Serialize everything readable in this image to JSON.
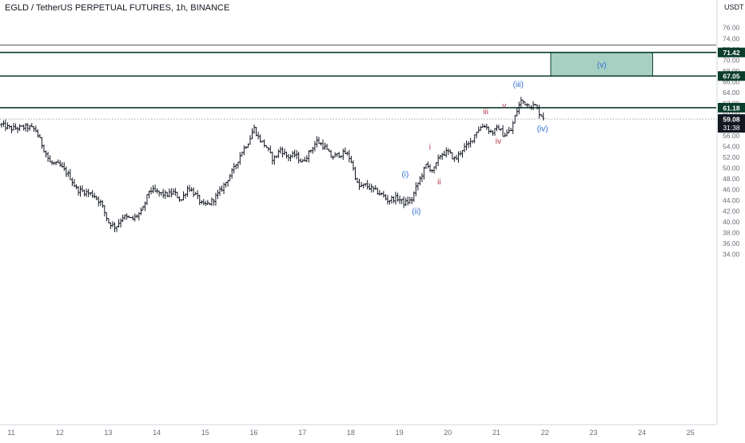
{
  "header": {
    "title": "EGLD / TetherUS PERPETUAL FUTURES, 1h, BINANCE",
    "currency": "USDT"
  },
  "chart_data": {
    "type": "ohlc",
    "title": "EGLD / TetherUS PERPETUAL FUTURES, 1h, BINANCE",
    "y_unit": "USDT",
    "ylim": [
      33.0,
      77.2
    ],
    "y_ticks": [
      34,
      36,
      38,
      40,
      42,
      44,
      46,
      48,
      50,
      52,
      54,
      56,
      58,
      60,
      62,
      64,
      66,
      68,
      70,
      72,
      74,
      76
    ],
    "x_ticks": [
      {
        "label": "11",
        "day": 11
      },
      {
        "label": "12",
        "day": 12
      },
      {
        "label": "13",
        "day": 13
      },
      {
        "label": "14",
        "day": 14
      },
      {
        "label": "15",
        "day": 15
      },
      {
        "label": "16",
        "day": 16
      },
      {
        "label": "17",
        "day": 17
      },
      {
        "label": "18",
        "day": 18
      },
      {
        "label": "19",
        "day": 19
      },
      {
        "label": "20",
        "day": 20
      },
      {
        "label": "21",
        "day": 21
      },
      {
        "label": "22",
        "day": 22
      },
      {
        "label": "23",
        "day": 23
      },
      {
        "label": "24",
        "day": 24
      },
      {
        "label": "25",
        "day": 25
      }
    ],
    "xlim": [
      10.8,
      25.9
    ],
    "price_path": [
      [
        10.8,
        58.0
      ],
      [
        11.0,
        57.3
      ],
      [
        11.35,
        57.6
      ],
      [
        11.5,
        57.1
      ],
      [
        11.65,
        54.0
      ],
      [
        11.8,
        51.0
      ],
      [
        12.0,
        50.5
      ],
      [
        12.2,
        48.5
      ],
      [
        12.35,
        46.0
      ],
      [
        12.55,
        45.5
      ],
      [
        12.7,
        45.0
      ],
      [
        12.85,
        43.5
      ],
      [
        13.0,
        40.0
      ],
      [
        13.15,
        39.0
      ],
      [
        13.3,
        41.0
      ],
      [
        13.5,
        40.5
      ],
      [
        13.7,
        42.0
      ],
      [
        13.85,
        46.0
      ],
      [
        14.0,
        45.5
      ],
      [
        14.2,
        45.0
      ],
      [
        14.35,
        45.5
      ],
      [
        14.5,
        44.0
      ],
      [
        14.65,
        46.5
      ],
      [
        14.8,
        45.0
      ],
      [
        14.95,
        43.0
      ],
      [
        15.1,
        43.5
      ],
      [
        15.25,
        45.0
      ],
      [
        15.4,
        47.0
      ],
      [
        15.6,
        50.0
      ],
      [
        15.75,
        53.0
      ],
      [
        15.9,
        55.0
      ],
      [
        16.0,
        57.5
      ],
      [
        16.1,
        55.5
      ],
      [
        16.25,
        54.0
      ],
      [
        16.4,
        51.5
      ],
      [
        16.55,
        53.5
      ],
      [
        16.7,
        52.0
      ],
      [
        16.85,
        52.5
      ],
      [
        17.0,
        51.0
      ],
      [
        17.15,
        53.0
      ],
      [
        17.3,
        55.0
      ],
      [
        17.45,
        54.0
      ],
      [
        17.6,
        52.0
      ],
      [
        17.75,
        52.5
      ],
      [
        17.9,
        52.8
      ],
      [
        18.0,
        51.5
      ],
      [
        18.15,
        46.5
      ],
      [
        18.3,
        46.8
      ],
      [
        18.5,
        45.8
      ],
      [
        18.65,
        45.0
      ],
      [
        18.75,
        44.0
      ],
      [
        18.95,
        44.5
      ],
      [
        19.1,
        43.5
      ],
      [
        19.25,
        44.0
      ],
      [
        19.35,
        46.5
      ],
      [
        19.45,
        48.5
      ],
      [
        19.55,
        50.5
      ],
      [
        19.7,
        49.5
      ],
      [
        19.85,
        52.5
      ],
      [
        20.0,
        53.0
      ],
      [
        20.15,
        51.5
      ],
      [
        20.3,
        53.5
      ],
      [
        20.45,
        54.5
      ],
      [
        20.6,
        57.0
      ],
      [
        20.75,
        58.0
      ],
      [
        20.9,
        56.5
      ],
      [
        21.05,
        57.5
      ],
      [
        21.15,
        56.0
      ],
      [
        21.3,
        57.0
      ],
      [
        21.4,
        60.0
      ],
      [
        21.5,
        62.5
      ],
      [
        21.6,
        62.0
      ],
      [
        21.7,
        61.5
      ],
      [
        21.8,
        61.5
      ],
      [
        21.9,
        60.0
      ],
      [
        22.0,
        59.08
      ]
    ],
    "price_lines": [
      {
        "value": 71.42,
        "label": "71.42",
        "color": "#0b3d2c"
      },
      {
        "value": 67.05,
        "label": "67.05",
        "color": "#0b3d2c"
      },
      {
        "value": 61.18,
        "label": "61.18",
        "color": "#0b3d2c"
      }
    ],
    "thin_line": {
      "value": 72.8,
      "color": "#555555"
    },
    "current_price": {
      "value": 59.08,
      "label": "59.08",
      "countdown": "31:38"
    },
    "target_zone": {
      "x_start": 22.12,
      "x_end": 24.22,
      "y_low": 67.05,
      "y_high": 71.42,
      "label": "(v)",
      "fill": "#9dcbbb",
      "border": "#0b3d2c"
    },
    "annotations": [
      {
        "text": "(i)",
        "day": 19.12,
        "price": 48.4,
        "color": "#2f6fd6"
      },
      {
        "text": "(ii)",
        "day": 19.35,
        "price": 41.5,
        "color": "#2f6fd6"
      },
      {
        "text": "(iii)",
        "day": 21.45,
        "price": 65.0,
        "color": "#2f6fd6"
      },
      {
        "text": "(iv)",
        "day": 21.95,
        "price": 56.8,
        "color": "#2f6fd6"
      },
      {
        "text": "i",
        "day": 19.63,
        "price": 53.4,
        "color": "#b2374a"
      },
      {
        "text": "ii",
        "day": 19.82,
        "price": 47.0,
        "color": "#b2374a"
      },
      {
        "text": "iii",
        "day": 20.78,
        "price": 60.0,
        "color": "#b2374a"
      },
      {
        "text": "iv",
        "day": 21.04,
        "price": 54.5,
        "color": "#b2374a"
      },
      {
        "text": "v",
        "day": 21.16,
        "price": 61.1,
        "color": "#b2374a"
      }
    ]
  },
  "colors": {
    "bar": "#131722",
    "grid_text": "#6a6d78",
    "axis_line": "#d1d4dc"
  }
}
